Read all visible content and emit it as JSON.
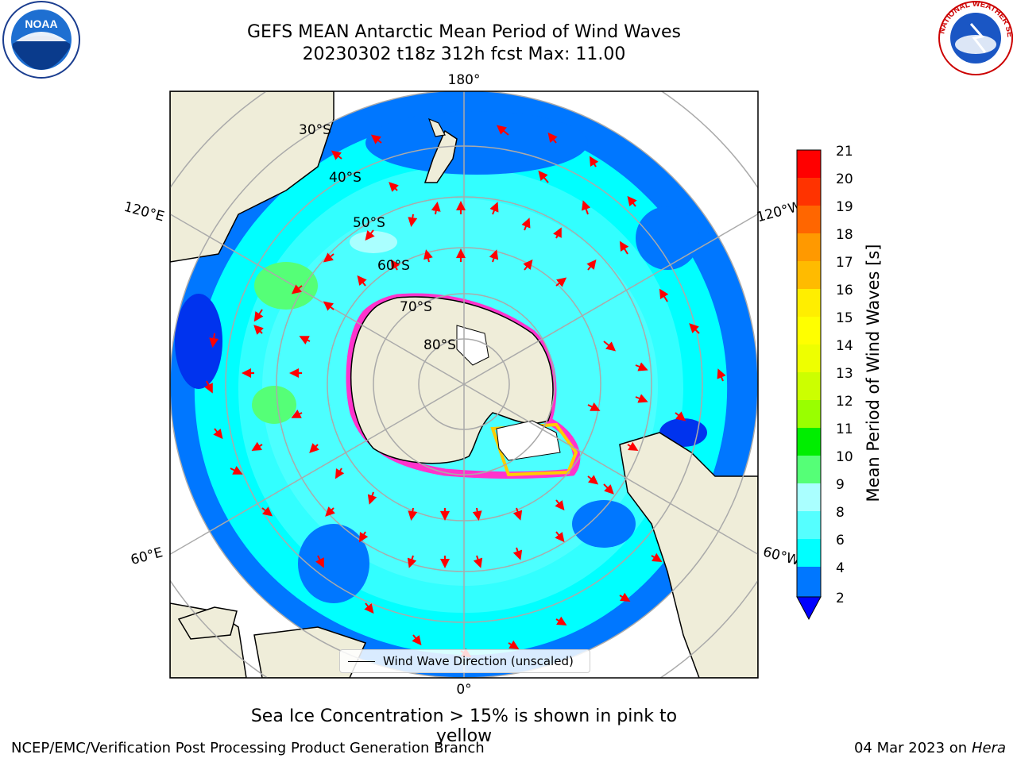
{
  "title": {
    "line1": "GEFS MEAN Antarctic Mean Period of Wind Waves",
    "line2": "20230302 t18z 312h fcst   Max: 11.00"
  },
  "map": {
    "projection": "south-polar-stereographic",
    "longitude_labels": {
      "top": "180°",
      "bottom": "0°",
      "left_top": "120°E",
      "left_bottom": "60°E",
      "right_top": "120°W",
      "right_bottom": "60°W"
    },
    "latitude_labels": [
      "30°S",
      "40°S",
      "50°S",
      "60°S",
      "70°S",
      "80°S"
    ],
    "legend": "Wind Wave Direction (unscaled)",
    "colors": {
      "land": "#efedd9",
      "ocean_low": "#0077ff",
      "ocean_mid": "#00ffff",
      "ice": "#ff33cc"
    }
  },
  "colorbar": {
    "label": "Mean Period of Wind Waves [s]",
    "ticks": [
      "21",
      "20",
      "19",
      "18",
      "17",
      "16",
      "15",
      "14",
      "13",
      "12",
      "11",
      "10",
      "9",
      "8",
      "6",
      "4",
      "2"
    ],
    "colors": [
      "#ff0000",
      "#ff3300",
      "#ff6600",
      "#ff9900",
      "#ffbb00",
      "#ffee00",
      "#ffff00",
      "#eeff00",
      "#ccff00",
      "#99ff00",
      "#55ff00",
      "#00ee00",
      "#55ff77",
      "#aaffff",
      "#55ffff",
      "#00ffff",
      "#0077ff"
    ]
  },
  "footer": {
    "note": "Sea Ice Concentration > 15% is shown in pink to yellow",
    "credit": "NCEP/EMC/Verification Post Processing Product Generation Branch",
    "date_prefix": "04 Mar 2023 on",
    "host": "Hera"
  },
  "logos": {
    "left": "NOAA",
    "right": "NATIONAL WEATHER SERVICE"
  }
}
